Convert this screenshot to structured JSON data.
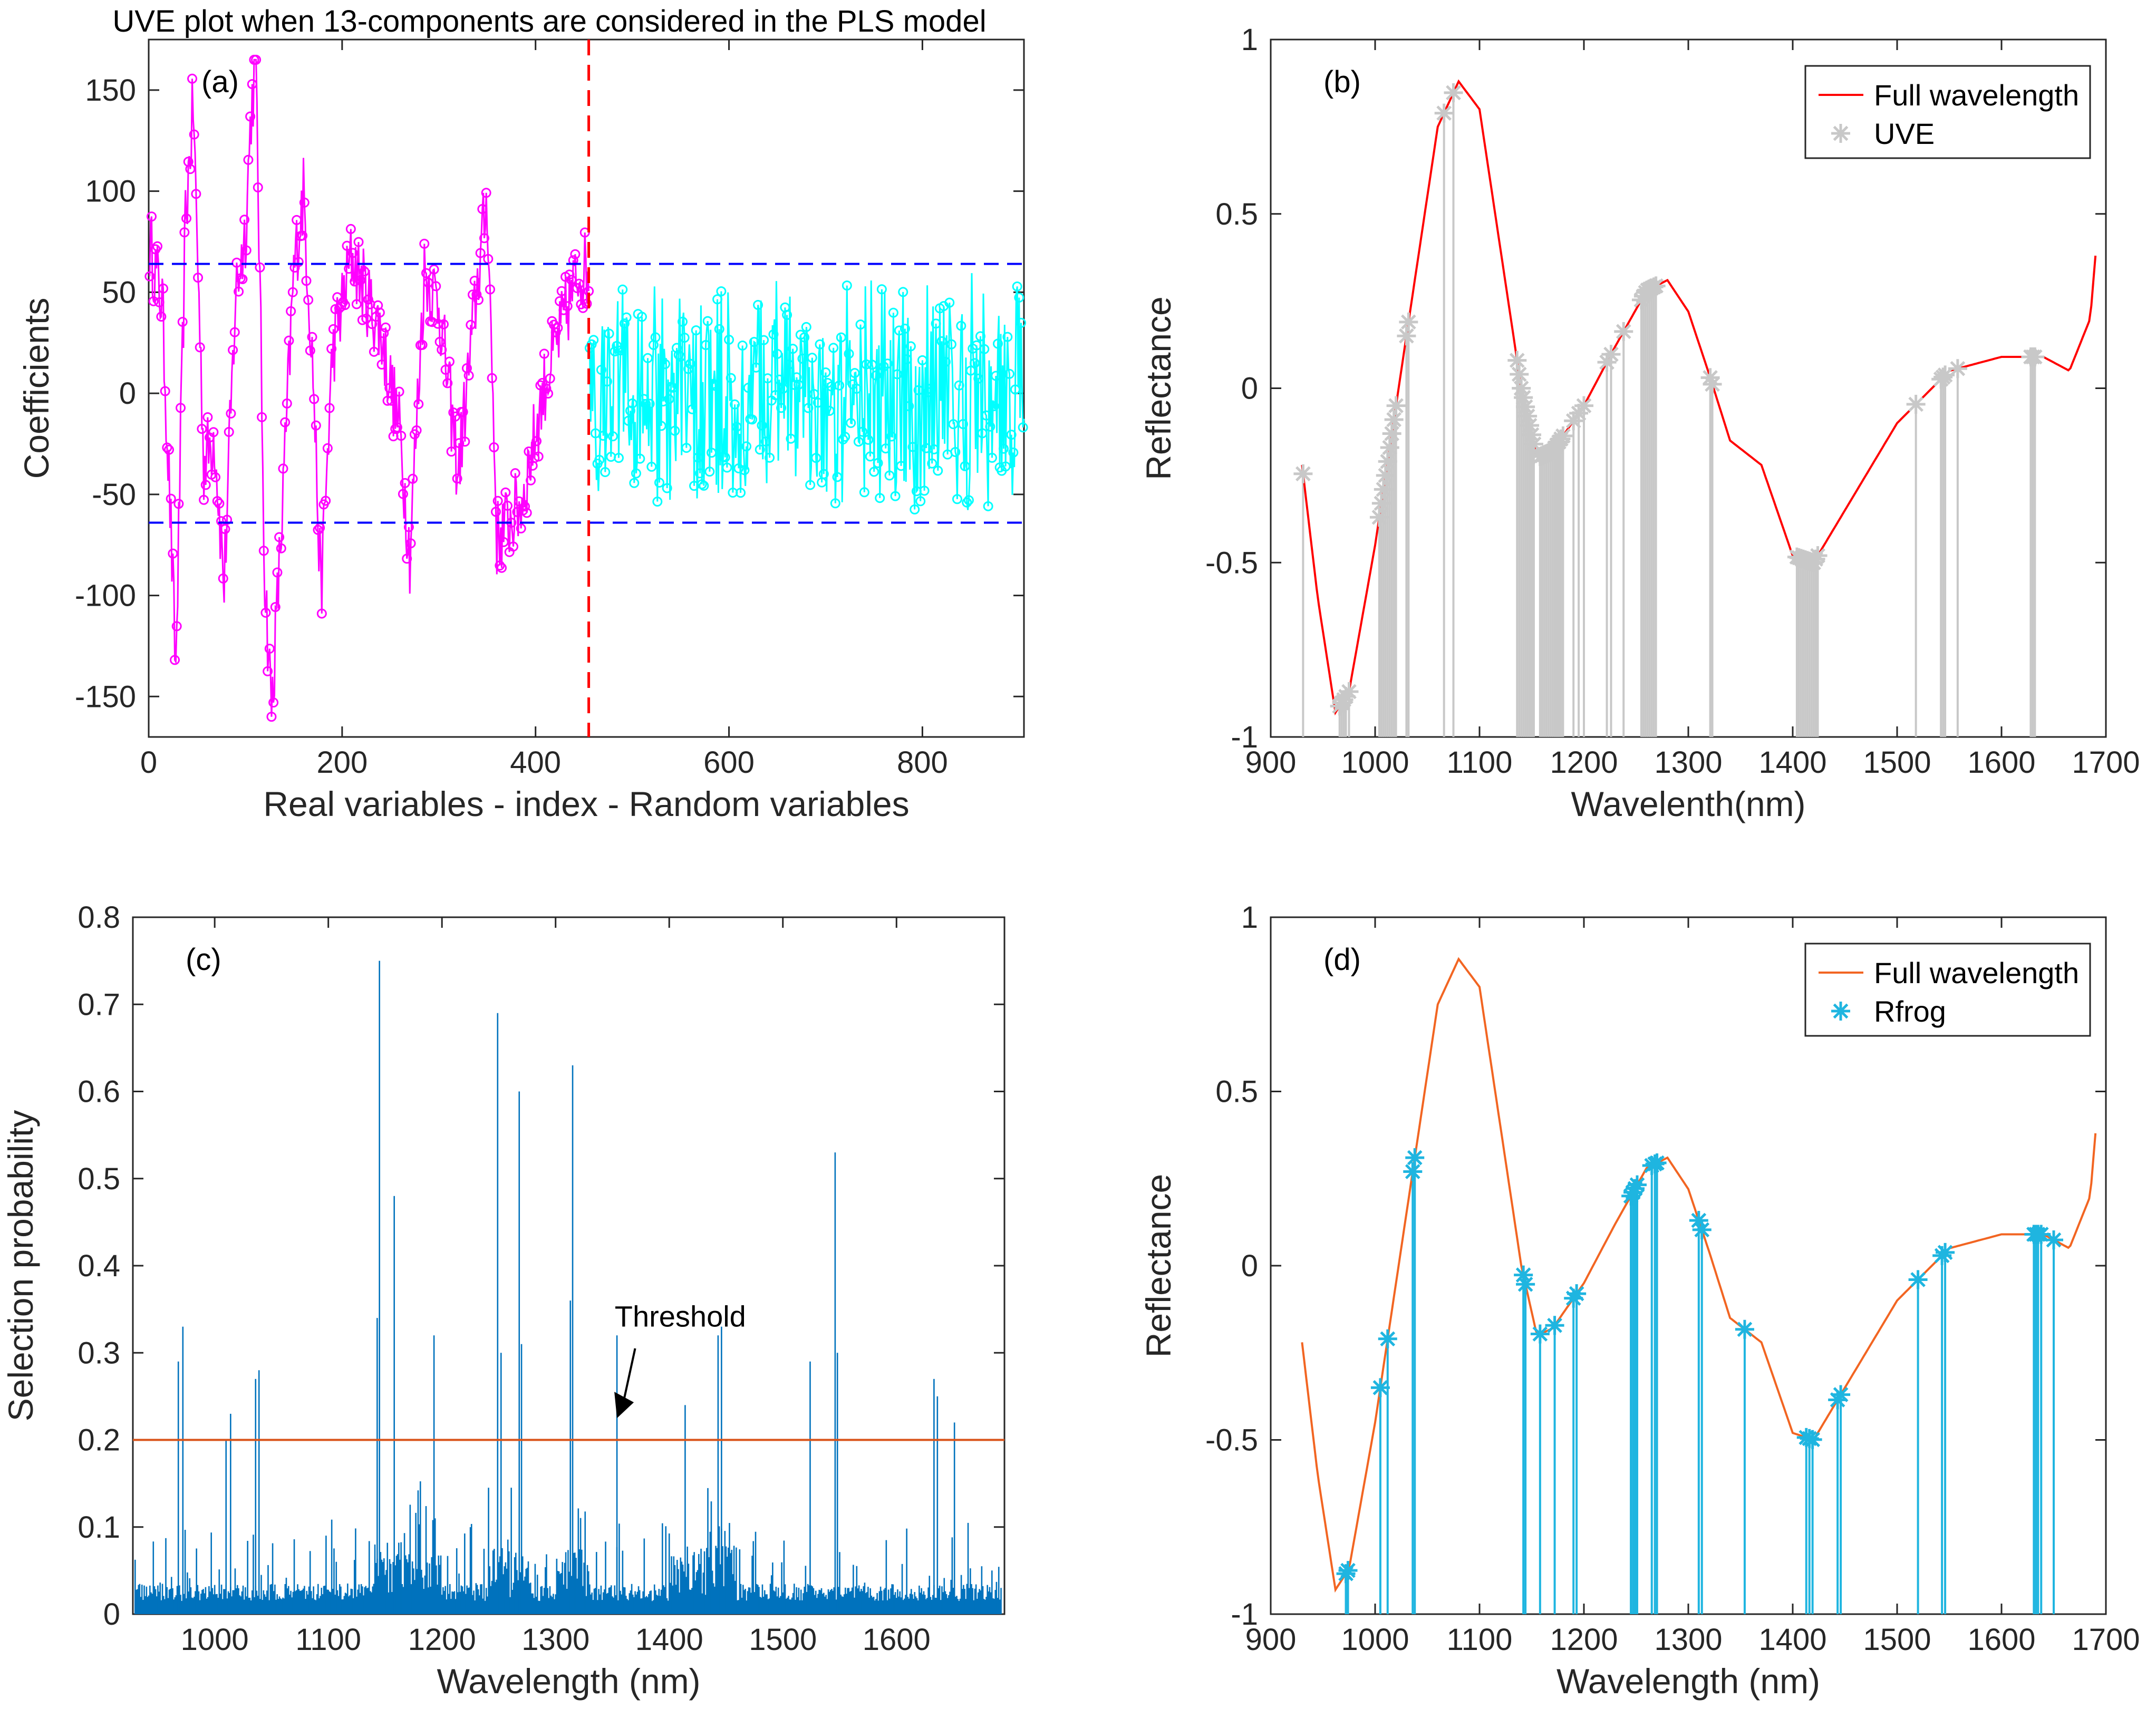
{
  "chart_data": [
    {
      "panel": "a",
      "type": "line",
      "title": "UVE plot when 13-components are considered in the PLS model",
      "tag": "(a)",
      "xlabel": "Real variables - index - Random variables",
      "ylabel": "Coefficients",
      "xlim": [
        0,
        905
      ],
      "ylim": [
        -170,
        175
      ],
      "xticks": [
        0,
        200,
        400,
        600,
        800
      ],
      "yticks": [
        -150,
        -100,
        -50,
        0,
        50,
        100,
        150
      ],
      "cutoff_index": 455,
      "threshold_upper": 64,
      "threshold_lower": -64,
      "series": [
        {
          "name": "Real variables",
          "color": "#ff00ff",
          "index_range": [
            1,
            455
          ],
          "peaks": [
            [
              1,
              74
            ],
            [
              14,
              45
            ],
            [
              22,
              -55
            ],
            [
              28,
              -138
            ],
            [
              38,
              85
            ],
            [
              46,
              143
            ],
            [
              57,
              -35
            ],
            [
              68,
              -20
            ],
            [
              78,
              -95
            ],
            [
              90,
              50
            ],
            [
              100,
              80
            ],
            [
              106,
              140
            ],
            [
              111,
              165
            ],
            [
              120,
              -90
            ],
            [
              127,
              -157
            ],
            [
              138,
              -60
            ],
            [
              150,
              60
            ],
            [
              160,
              99
            ],
            [
              170,
              10
            ],
            [
              178,
              -100
            ],
            [
              190,
              20
            ],
            [
              210,
              68
            ],
            [
              240,
              30
            ],
            [
              260,
              -20
            ],
            [
              270,
              -80
            ],
            [
              285,
              60
            ],
            [
              300,
              45
            ],
            [
              320,
              -40
            ],
            [
              340,
              55
            ],
            [
              350,
              97
            ],
            [
              360,
              -72
            ],
            [
              385,
              -55
            ],
            [
              410,
              5
            ],
            [
              445,
              61
            ]
          ]
        },
        {
          "name": "Random variables",
          "color": "#00ffff",
          "index_range": [
            456,
            905
          ],
          "amplitude": 65
        }
      ]
    },
    {
      "panel": "b",
      "type": "line",
      "tag": "(b)",
      "xlabel": "Wavelenth(nm)",
      "ylabel": "Reflectance",
      "xlim": [
        900,
        1700
      ],
      "ylim": [
        -1,
        1
      ],
      "xticks": [
        900,
        1000,
        1100,
        1200,
        1300,
        1400,
        1500,
        1600,
        1700
      ],
      "yticks": [
        -1,
        -0.5,
        0,
        0.5,
        1
      ],
      "ytick_labels": [
        "-1",
        "-0.5",
        "0",
        "0.5",
        "1"
      ],
      "legend": [
        "Full wavelength",
        "UVE"
      ],
      "curve_color": "#ff0000",
      "marker_color": "#c8c8c8",
      "curve_points": [
        [
          930,
          -0.22
        ],
        [
          945,
          -0.6
        ],
        [
          962,
          -0.93
        ],
        [
          975,
          -0.87
        ],
        [
          1000,
          -0.45
        ],
        [
          1020,
          -0.05
        ],
        [
          1040,
          0.35
        ],
        [
          1060,
          0.75
        ],
        [
          1080,
          0.88
        ],
        [
          1100,
          0.8
        ],
        [
          1120,
          0.4
        ],
        [
          1140,
          0.0
        ],
        [
          1155,
          -0.2
        ],
        [
          1170,
          -0.18
        ],
        [
          1200,
          -0.05
        ],
        [
          1230,
          0.12
        ],
        [
          1260,
          0.28
        ],
        [
          1280,
          0.31
        ],
        [
          1300,
          0.22
        ],
        [
          1320,
          0.04
        ],
        [
          1340,
          -0.15
        ],
        [
          1370,
          -0.22
        ],
        [
          1400,
          -0.48
        ],
        [
          1420,
          -0.5
        ],
        [
          1450,
          -0.35
        ],
        [
          1500,
          -0.1
        ],
        [
          1550,
          0.05
        ],
        [
          1600,
          0.09
        ],
        [
          1640,
          0.09
        ],
        [
          1665,
          0.05
        ],
        [
          1685,
          0.2
        ],
        [
          1690,
          0.38
        ]
      ],
      "selected_wavelengths": [
        931,
        966,
        968,
        970,
        972,
        975,
        1004,
        1006,
        1008,
        1010,
        1012,
        1014,
        1016,
        1018,
        1020,
        1030,
        1032,
        1066,
        1075,
        1136,
        1138,
        1140,
        1142,
        1144,
        1146,
        1148,
        1150,
        1152,
        1158,
        1160,
        1162,
        1164,
        1166,
        1168,
        1170,
        1172,
        1174,
        1176,
        1178,
        1180,
        1190,
        1195,
        1200,
        1222,
        1226,
        1238,
        1255,
        1257,
        1259,
        1261,
        1263,
        1265,
        1267,
        1269,
        1321,
        1323,
        1404,
        1406,
        1408,
        1410,
        1412,
        1414,
        1416,
        1418,
        1420,
        1422,
        1424,
        1518,
        1542,
        1544,
        1546,
        1558,
        1628,
        1630,
        1632
      ]
    },
    {
      "panel": "c",
      "type": "bar",
      "tag": "(c)",
      "xlabel": "Wavelength (nm)",
      "ylabel": "Selection probability",
      "xlim": [
        928,
        1695
      ],
      "ylim": [
        0,
        0.8
      ],
      "xticks": [
        1000,
        1100,
        1200,
        1300,
        1400,
        1500,
        1600
      ],
      "yticks": [
        0,
        0.1,
        0.2,
        0.3,
        0.4,
        0.5,
        0.6,
        0.7,
        0.8
      ],
      "ytick_labels": [
        "0",
        "0.1",
        "0.2",
        "0.3",
        "0.4",
        "0.5",
        "0.6",
        "0.7",
        "0.8"
      ],
      "threshold": 0.2,
      "threshold_label": "Threshold",
      "bar_color": "#0072bd",
      "threshold_color": "#d95319",
      "bars": [
        [
          968,
          0.29
        ],
        [
          972,
          0.33
        ],
        [
          1010,
          0.2
        ],
        [
          1014,
          0.23
        ],
        [
          1036,
          0.27
        ],
        [
          1039,
          0.28
        ],
        [
          1143,
          0.34
        ],
        [
          1145,
          0.75
        ],
        [
          1158,
          0.48
        ],
        [
          1193,
          0.32
        ],
        [
          1249,
          0.69
        ],
        [
          1252,
          0.3
        ],
        [
          1268,
          0.6
        ],
        [
          1270,
          0.31
        ],
        [
          1313,
          0.36
        ],
        [
          1315,
          0.63
        ],
        [
          1354,
          0.32
        ],
        [
          1414,
          0.24
        ],
        [
          1443,
          0.32
        ],
        [
          1446,
          0.33
        ],
        [
          1524,
          0.29
        ],
        [
          1546,
          0.53
        ],
        [
          1548,
          0.3
        ],
        [
          1633,
          0.27
        ],
        [
          1636,
          0.25
        ],
        [
          1651,
          0.22
        ]
      ]
    },
    {
      "panel": "d",
      "type": "line",
      "tag": "(d)",
      "xlabel": "Wavelength (nm)",
      "ylabel": "Reflectance",
      "xlim": [
        900,
        1700
      ],
      "ylim": [
        -1,
        1
      ],
      "xticks": [
        900,
        1000,
        1100,
        1200,
        1300,
        1400,
        1500,
        1600,
        1700
      ],
      "yticks": [
        -1,
        -0.5,
        0,
        0.5,
        1
      ],
      "ytick_labels": [
        "-1",
        "-0.5",
        "0",
        "0.5",
        "1"
      ],
      "legend": [
        "Full wavelength",
        "Rfrog"
      ],
      "curve_color": "#f26522",
      "marker_color": "#1fb5e0",
      "curve_points": [
        [
          930,
          -0.22
        ],
        [
          945,
          -0.6
        ],
        [
          962,
          -0.93
        ],
        [
          975,
          -0.87
        ],
        [
          1000,
          -0.45
        ],
        [
          1020,
          -0.05
        ],
        [
          1040,
          0.35
        ],
        [
          1060,
          0.75
        ],
        [
          1080,
          0.88
        ],
        [
          1100,
          0.8
        ],
        [
          1120,
          0.4
        ],
        [
          1140,
          0.0
        ],
        [
          1155,
          -0.2
        ],
        [
          1170,
          -0.18
        ],
        [
          1200,
          -0.05
        ],
        [
          1230,
          0.12
        ],
        [
          1260,
          0.28
        ],
        [
          1280,
          0.31
        ],
        [
          1300,
          0.22
        ],
        [
          1320,
          0.04
        ],
        [
          1340,
          -0.15
        ],
        [
          1370,
          -0.22
        ],
        [
          1400,
          -0.48
        ],
        [
          1420,
          -0.5
        ],
        [
          1450,
          -0.35
        ],
        [
          1500,
          -0.1
        ],
        [
          1550,
          0.05
        ],
        [
          1600,
          0.09
        ],
        [
          1640,
          0.09
        ],
        [
          1665,
          0.05
        ],
        [
          1685,
          0.2
        ],
        [
          1690,
          0.38
        ]
      ],
      "selected_wavelengths": [
        972,
        974,
        1005,
        1012,
        1036,
        1038,
        1142,
        1144,
        1158,
        1172,
        1190,
        1193,
        1245,
        1247,
        1249,
        1251,
        1265,
        1268,
        1270,
        1310,
        1313,
        1354,
        1413,
        1416,
        1419,
        1443,
        1446,
        1520,
        1543,
        1546,
        1631,
        1633,
        1635,
        1638,
        1650
      ]
    }
  ]
}
